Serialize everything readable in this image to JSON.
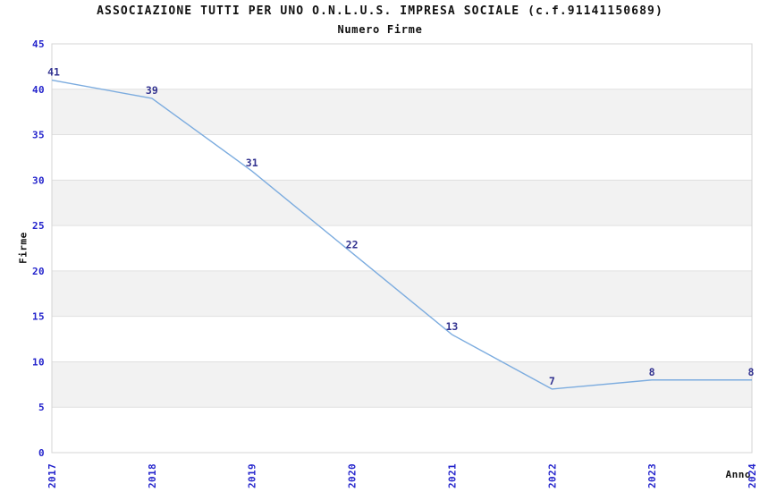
{
  "header": {
    "title": "ASSOCIAZIONE TUTTI PER UNO O.N.L.U.S. IMPRESA SOCIALE (c.f.91141150689)",
    "subtitle": "Numero Firme"
  },
  "chart_data": {
    "type": "line",
    "title": "ASSOCIAZIONE TUTTI PER UNO O.N.L.U.S. IMPRESA SOCIALE (c.f.91141150689)",
    "subtitle": "Numero Firme",
    "x": [
      "2017",
      "2018",
      "2019",
      "2020",
      "2021",
      "2022",
      "2023",
      "2024"
    ],
    "values": [
      41,
      39,
      31,
      22,
      13,
      7,
      8,
      8
    ],
    "xlabel": "Anno",
    "ylabel": "Firme",
    "ylim": [
      0,
      45
    ],
    "yticks": [
      0,
      5,
      10,
      15,
      20,
      25,
      30,
      35,
      40,
      45
    ],
    "grid": true,
    "legend_position": "none",
    "band_alternating": true,
    "point_labels_shown": true,
    "colors": {
      "line": "#7cacdf",
      "axis_tick_label": "#2424cc",
      "point_label": "#333390",
      "band_gray": "#f2f2f2",
      "band_white": "#ffffff",
      "gridline": "#e0e0e0",
      "plot_border": "#d4d4d4",
      "title_text": "#111111",
      "background": "#ffffff"
    }
  }
}
